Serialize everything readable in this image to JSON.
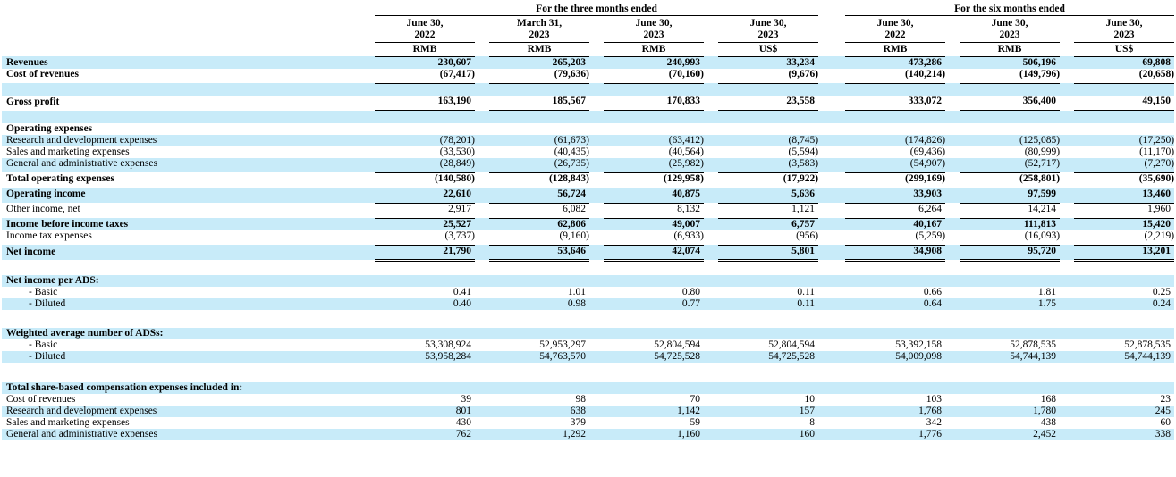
{
  "page": {
    "background_color": "#ffffff",
    "row_highlight_color": "#c8ebf9",
    "rule_color": "#000000"
  },
  "table": {
    "groups": [
      {
        "label": "For the three months ended",
        "columns": 4
      },
      {
        "label": "For the six months ended",
        "columns": 3
      }
    ],
    "columns": [
      {
        "period_line1": "June 30,",
        "period_line2": "2022",
        "currency": "RMB"
      },
      {
        "period_line1": "March 31,",
        "period_line2": "2023",
        "currency": "RMB"
      },
      {
        "period_line1": "June 30,",
        "period_line2": "2023",
        "currency": "RMB"
      },
      {
        "period_line1": "June 30,",
        "period_line2": "2023",
        "currency": "US$"
      },
      {
        "period_line1": "June 30,",
        "period_line2": "2022",
        "currency": "RMB"
      },
      {
        "period_line1": "June 30,",
        "period_line2": "2023",
        "currency": "RMB"
      },
      {
        "period_line1": "June 30,",
        "period_line2": "2023",
        "currency": "US$"
      }
    ],
    "rows": [
      {
        "type": "data",
        "label": "Revenues",
        "bold": true,
        "bg": "blue",
        "rule": "none",
        "values": [
          "230,607",
          "265,203",
          "240,993",
          "33,234",
          "473,286",
          "506,196",
          "69,808"
        ]
      },
      {
        "type": "data",
        "label": "Cost of revenues",
        "bold": true,
        "bg": "white",
        "rule": "single",
        "values": [
          "(67,417)",
          "(79,636)",
          "(70,160)",
          "(9,676)",
          "(140,214)",
          "(149,796)",
          "(20,658)"
        ]
      },
      {
        "type": "spacer",
        "bg": "blue",
        "h": 14
      },
      {
        "type": "data",
        "label": "Gross profit",
        "bold": true,
        "bg": "white",
        "rule": "single",
        "values": [
          "163,190",
          "185,567",
          "170,833",
          "23,558",
          "333,072",
          "356,400",
          "49,150"
        ]
      },
      {
        "type": "spacer",
        "bg": "blue",
        "h": 14
      },
      {
        "type": "data",
        "label": "Operating expenses",
        "bold": true,
        "bg": "white",
        "rule": "none",
        "values": []
      },
      {
        "type": "data",
        "label": "Research and development expenses",
        "bold": false,
        "bg": "blue",
        "rule": "none",
        "values": [
          "(78,201)",
          "(61,673)",
          "(63,412)",
          "(8,745)",
          "(174,826)",
          "(125,085)",
          "(17,250)"
        ]
      },
      {
        "type": "data",
        "label": "Sales and marketing expenses",
        "bold": false,
        "bg": "white",
        "rule": "none",
        "values": [
          "(33,530)",
          "(40,435)",
          "(40,564)",
          "(5,594)",
          "(69,436)",
          "(80,999)",
          "(11,170)"
        ]
      },
      {
        "type": "data",
        "label": "General and administrative expenses",
        "bold": false,
        "bg": "blue",
        "rule": "single",
        "values": [
          "(28,849)",
          "(26,735)",
          "(25,982)",
          "(3,583)",
          "(54,907)",
          "(52,717)",
          "(7,270)"
        ]
      },
      {
        "type": "data",
        "label": "Total operating expenses",
        "bold": true,
        "bg": "white",
        "rule": "single",
        "values": [
          "(140,580)",
          "(128,843)",
          "(129,958)",
          "(17,922)",
          "(299,169)",
          "(258,801)",
          "(35,690)"
        ]
      },
      {
        "type": "data",
        "label": "Operating income",
        "bold": true,
        "bg": "blue",
        "rule": "single",
        "values": [
          "22,610",
          "56,724",
          "40,875",
          "5,636",
          "33,903",
          "97,599",
          "13,460"
        ]
      },
      {
        "type": "data",
        "label": "Other income, net",
        "bold": false,
        "bg": "white",
        "rule": "single",
        "values": [
          "2,917",
          "6,082",
          "8,132",
          "1,121",
          "6,264",
          "14,214",
          "1,960"
        ]
      },
      {
        "type": "data",
        "label": "Income before income taxes",
        "bold": true,
        "bg": "blue",
        "rule": "none",
        "values": [
          "25,527",
          "62,806",
          "49,007",
          "6,757",
          "40,167",
          "111,813",
          "15,420"
        ]
      },
      {
        "type": "data",
        "label": "Income tax expenses",
        "bold": false,
        "bg": "white",
        "rule": "single",
        "values": [
          "(3,737)",
          "(9,160)",
          "(6,933)",
          "(956)",
          "(5,259)",
          "(16,093)",
          "(2,219)"
        ]
      },
      {
        "type": "data",
        "label": "Net income",
        "bold": true,
        "bg": "blue",
        "rule": "double",
        "values": [
          "21,790",
          "53,646",
          "42,074",
          "5,801",
          "34,908",
          "95,720",
          "13,201"
        ]
      },
      {
        "type": "spacer",
        "bg": "white",
        "h": 17
      },
      {
        "type": "data",
        "label": "Net income per ADS:",
        "bold": true,
        "bg": "blue",
        "rule": "none",
        "values": []
      },
      {
        "type": "data",
        "label": "- Basic",
        "indent": 1,
        "bold": false,
        "bg": "white",
        "rule": "none",
        "values": [
          "0.41",
          "1.01",
          "0.80",
          "0.11",
          "0.66",
          "1.81",
          "0.25"
        ]
      },
      {
        "type": "data",
        "label": "- Diluted",
        "indent": 1,
        "bold": false,
        "bg": "blue",
        "rule": "none",
        "values": [
          "0.40",
          "0.98",
          "0.77",
          "0.11",
          "0.64",
          "1.75",
          "0.24"
        ]
      },
      {
        "type": "spacer",
        "bg": "white",
        "h": 20
      },
      {
        "type": "data",
        "label": "Weighted average number of ADSs:",
        "bold": true,
        "bg": "blue",
        "rule": "none",
        "values": []
      },
      {
        "type": "data",
        "label": "- Basic",
        "indent": 1,
        "bold": false,
        "bg": "white",
        "rule": "none",
        "values": [
          "53,308,924",
          "52,953,297",
          "52,804,594",
          "52,804,594",
          "53,392,158",
          "52,878,535",
          "52,878,535"
        ]
      },
      {
        "type": "data",
        "label": "- Diluted",
        "indent": 1,
        "bold": false,
        "bg": "blue",
        "rule": "none",
        "values": [
          "53,958,284",
          "54,763,570",
          "54,725,528",
          "54,725,528",
          "54,009,098",
          "54,744,139",
          "54,744,139"
        ]
      },
      {
        "type": "spacer",
        "bg": "white",
        "h": 22
      },
      {
        "type": "data",
        "label": "Total share-based compensation expenses included in:",
        "bold": true,
        "bg": "blue",
        "rule": "none",
        "values": []
      },
      {
        "type": "data",
        "label": "Cost of revenues",
        "bold": false,
        "bg": "white",
        "rule": "none",
        "values": [
          "39",
          "98",
          "70",
          "10",
          "103",
          "168",
          "23"
        ]
      },
      {
        "type": "data",
        "label": "Research and development expenses",
        "bold": false,
        "bg": "blue",
        "rule": "none",
        "values": [
          "801",
          "638",
          "1,142",
          "157",
          "1,768",
          "1,780",
          "245"
        ]
      },
      {
        "type": "data",
        "label": "Sales and marketing expenses",
        "bold": false,
        "bg": "white",
        "rule": "none",
        "values": [
          "430",
          "379",
          "59",
          "8",
          "342",
          "438",
          "60"
        ]
      },
      {
        "type": "data",
        "label": "General and administrative expenses",
        "bold": false,
        "bg": "blue",
        "rule": "none",
        "values": [
          "762",
          "1,292",
          "1,160",
          "160",
          "1,776",
          "2,452",
          "338"
        ]
      }
    ]
  }
}
